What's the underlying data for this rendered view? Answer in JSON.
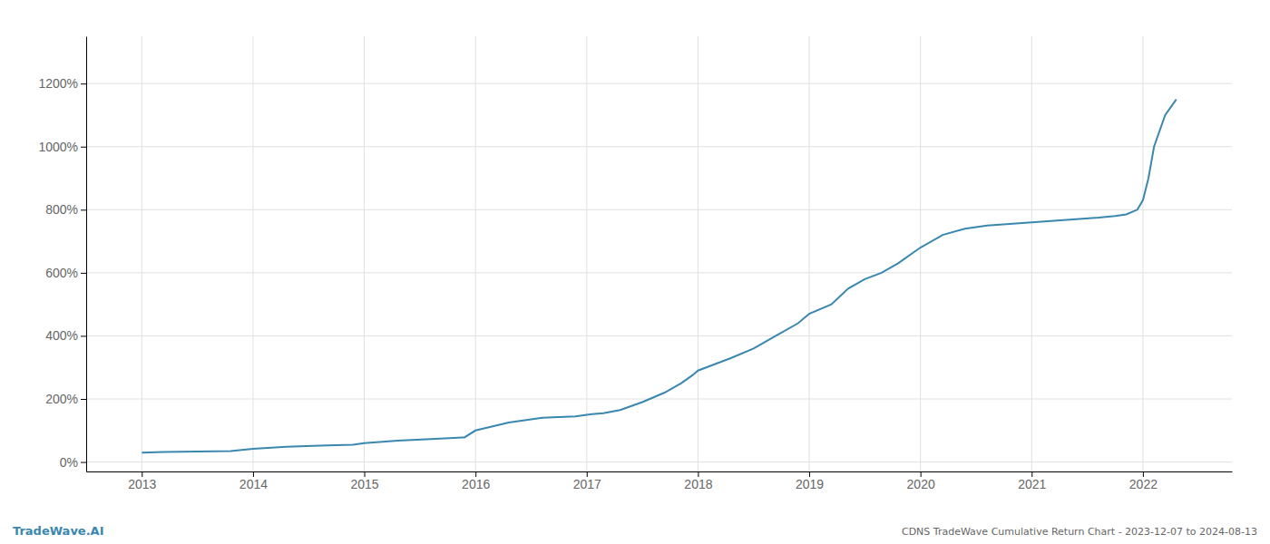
{
  "chart_data": {
    "type": "line",
    "title": "CDNS TradeWave Cumulative Return Chart - 2023-12-07 to 2024-08-13",
    "annotations": [
      "TradeWave.AI"
    ],
    "color": "#3a87b0",
    "grid": true,
    "x": [
      2013.0,
      2013.2,
      2013.5,
      2013.8,
      2014.0,
      2014.3,
      2014.6,
      2014.9,
      2015.0,
      2015.3,
      2015.6,
      2015.9,
      2016.0,
      2016.3,
      2016.6,
      2016.9,
      2017.0,
      2017.05,
      2017.15,
      2017.3,
      2017.5,
      2017.7,
      2017.85,
      2017.95,
      2018.0,
      2018.15,
      2018.3,
      2018.5,
      2018.7,
      2018.9,
      2019.0,
      2019.2,
      2019.35,
      2019.5,
      2019.65,
      2019.8,
      2020.0,
      2020.2,
      2020.4,
      2020.6,
      2020.8,
      2021.0,
      2021.2,
      2021.4,
      2021.6,
      2021.75,
      2021.85,
      2021.95,
      2022.0,
      2022.05,
      2022.1,
      2022.2,
      2022.3
    ],
    "values": [
      0.3,
      0.32,
      0.33,
      0.35,
      0.42,
      0.48,
      0.52,
      0.55,
      0.6,
      0.68,
      0.73,
      0.78,
      1.0,
      1.25,
      1.4,
      1.45,
      1.5,
      1.52,
      1.55,
      1.65,
      1.9,
      2.2,
      2.5,
      2.75,
      2.9,
      3.1,
      3.3,
      3.6,
      4.0,
      4.4,
      4.7,
      5.0,
      5.5,
      5.8,
      6.0,
      6.3,
      6.8,
      7.2,
      7.4,
      7.5,
      7.55,
      7.6,
      7.65,
      7.7,
      7.75,
      7.8,
      7.85,
      8.0,
      8.3,
      9.0,
      10.0,
      11.0,
      11.5
    ],
    "xlim": [
      2012.5,
      2022.8
    ],
    "xticks": [
      2013,
      2014,
      2015,
      2016,
      2017,
      2018,
      2019,
      2020,
      2021,
      2022
    ],
    "ylim": [
      -0.3,
      13.5
    ],
    "yticks": [
      {
        "value": 0,
        "label": "0%"
      },
      {
        "value": 2,
        "label": "200%"
      },
      {
        "value": 4,
        "label": "400%"
      },
      {
        "value": 6,
        "label": "600%"
      },
      {
        "value": 8,
        "label": "800%"
      },
      {
        "value": 10,
        "label": "1000%"
      },
      {
        "value": 12,
        "label": "1200%"
      }
    ]
  }
}
